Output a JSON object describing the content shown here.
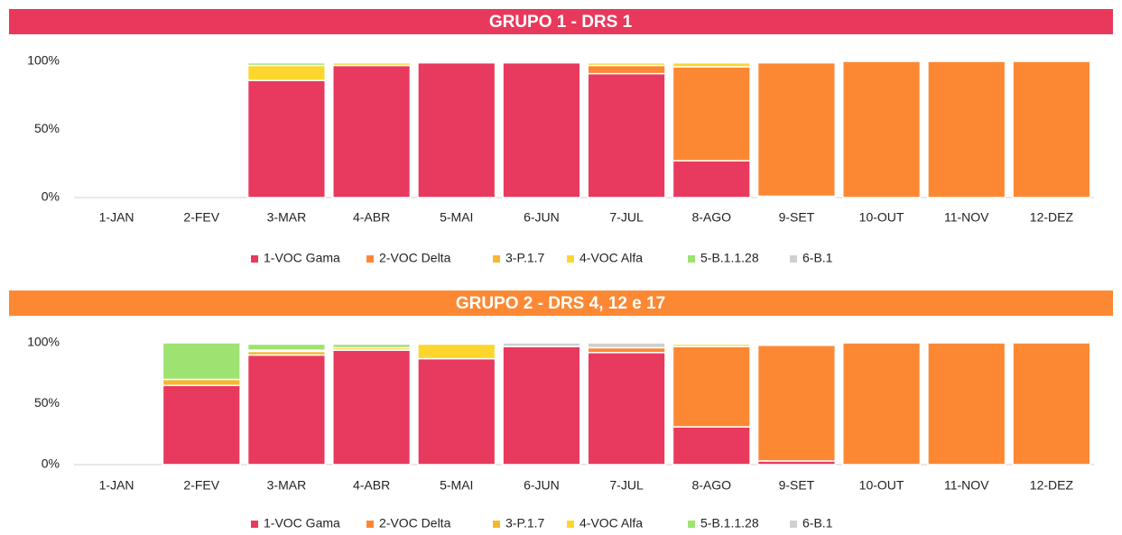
{
  "chart_data": [
    {
      "type": "bar",
      "title": "GRUPO 1 - DRS 1",
      "title_color": "#e8395c",
      "categories": [
        "1-JAN",
        "2-FEV",
        "3-MAR",
        "4-ABR",
        "5-MAI",
        "6-JUN",
        "7-JUL",
        "8-AGO",
        "9-SET",
        "10-OUT",
        "11-NOV",
        "12-DEZ"
      ],
      "ylim": [
        0,
        100
      ],
      "yticks": [
        {
          "value": 0,
          "label": "0%"
        },
        {
          "value": 50,
          "label": "50%"
        },
        {
          "value": 100,
          "label": "100%"
        }
      ],
      "series": [
        {
          "name": "1-VOC Gama",
          "color": "#e83a5e",
          "values": [
            0,
            0,
            86,
            97,
            99,
            99,
            91,
            27,
            1,
            0,
            0,
            0
          ]
        },
        {
          "name": "2-VOC Delta",
          "color": "#fd8833",
          "values": [
            0,
            0,
            0,
            0,
            0,
            0,
            6,
            69,
            98,
            100,
            100,
            100
          ]
        },
        {
          "name": "3-P.1.7",
          "color": "#f7b731",
          "values": [
            0,
            0,
            0,
            0,
            0,
            0,
            0,
            0,
            0,
            0,
            0,
            0
          ]
        },
        {
          "name": "4-VOC Alfa",
          "color": "#fcd62d",
          "values": [
            0,
            0,
            11,
            2,
            0,
            0,
            2,
            3,
            0,
            0,
            0,
            0
          ]
        },
        {
          "name": "5-B.1.1.28",
          "color": "#9ee271",
          "values": [
            0,
            0,
            2,
            1,
            0,
            0,
            1,
            0,
            0,
            0,
            0,
            0
          ]
        },
        {
          "name": "6-B.1",
          "color": "#d0d0d0",
          "values": [
            0,
            0,
            1,
            0,
            1,
            1,
            0,
            1,
            1,
            0,
            0,
            0
          ]
        }
      ]
    },
    {
      "type": "bar",
      "title": "GRUPO 2 - DRS 4, 12 e 17",
      "title_color": "#fd8833",
      "categories": [
        "1-JAN",
        "2-FEV",
        "3-MAR",
        "4-ABR",
        "5-MAI",
        "6-JUN",
        "7-JUL",
        "8-AGO",
        "9-SET",
        "10-OUT",
        "11-NOV",
        "12-DEZ"
      ],
      "ylim": [
        0,
        100
      ],
      "yticks": [
        {
          "value": 0,
          "label": "0%"
        },
        {
          "value": 50,
          "label": "50%"
        },
        {
          "value": 100,
          "label": "100%"
        }
      ],
      "series": [
        {
          "name": "1-VOC Gama",
          "color": "#e83a5e",
          "values": [
            0,
            65,
            90,
            94,
            87,
            97,
            92,
            31,
            3,
            0,
            0,
            0
          ]
        },
        {
          "name": "2-VOC Delta",
          "color": "#fd8833",
          "values": [
            0,
            0,
            0,
            0,
            0,
            0,
            4,
            66,
            95,
            100,
            100,
            100
          ]
        },
        {
          "name": "3-P.1.7",
          "color": "#f7b731",
          "values": [
            0,
            5,
            3,
            0,
            0,
            0,
            0,
            0,
            0,
            0,
            0,
            0
          ]
        },
        {
          "name": "4-VOC Alfa",
          "color": "#fcd62d",
          "values": [
            0,
            0,
            1,
            2,
            12,
            0,
            0,
            2,
            1,
            0,
            0,
            0
          ]
        },
        {
          "name": "5-B.1.1.28",
          "color": "#9ee271",
          "values": [
            0,
            30,
            5,
            3,
            0,
            0,
            0,
            0,
            0,
            0,
            0,
            0
          ]
        },
        {
          "name": "6-B.1",
          "color": "#d0d0d0",
          "values": [
            0,
            0,
            1,
            1,
            1,
            3,
            4,
            1,
            1,
            0,
            0,
            0
          ]
        }
      ]
    }
  ]
}
